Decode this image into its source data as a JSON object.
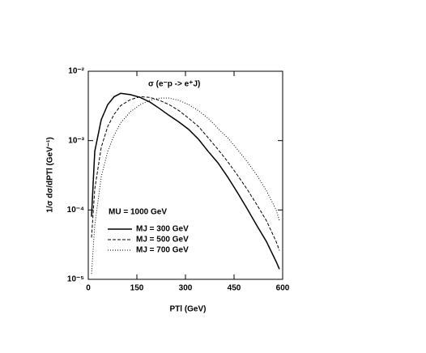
{
  "chart_data": {
    "type": "line",
    "annotations": [
      "σ (e⁻p -> e⁺J)",
      "MU = 1000 GeV"
    ],
    "xlabel": "PTl (GeV)",
    "ylabel": "1/σ dσ/dPTl (GeV⁻¹)",
    "x": [
      10,
      20,
      40,
      60,
      80,
      100,
      130,
      160,
      190,
      220,
      250,
      280,
      310,
      340,
      370,
      400,
      430,
      460,
      490,
      520,
      550,
      580,
      590
    ],
    "series": [
      {
        "name": "MJ = 300 GeV",
        "color": "#000000",
        "dash": "solid",
        "values": [
          8e-05,
          0.0007,
          0.002,
          0.0033,
          0.0043,
          0.0048,
          0.0046,
          0.0042,
          0.0036,
          0.0029,
          0.0023,
          0.00185,
          0.00145,
          0.00105,
          0.0007,
          0.00048,
          0.0003,
          0.00018,
          0.000105,
          6e-05,
          3.5e-05,
          1.8e-05,
          1.4e-05
        ]
      },
      {
        "name": "MJ = 500 GeV",
        "color": "#000000",
        "dash": "dashed",
        "values": [
          4e-05,
          0.0002,
          0.0008,
          0.0016,
          0.0024,
          0.0032,
          0.0039,
          0.0043,
          0.0042,
          0.0038,
          0.0033,
          0.0027,
          0.0021,
          0.0016,
          0.0011,
          0.00075,
          0.0005,
          0.00032,
          0.0002,
          0.00012,
          7e-05,
          3.5e-05,
          2.6e-05
        ]
      },
      {
        "name": "MJ = 700 GeV",
        "color": "#000000",
        "dash": "dotted",
        "values": [
          1.2e-05,
          6e-05,
          0.0003,
          0.0007,
          0.0012,
          0.0018,
          0.0026,
          0.0033,
          0.0038,
          0.0041,
          0.0041,
          0.0038,
          0.0033,
          0.0027,
          0.0021,
          0.0015,
          0.0011,
          0.00075,
          0.0005,
          0.00032,
          0.00019,
          0.0001,
          7e-05
        ]
      }
    ],
    "xlim": [
      0,
      600
    ],
    "xticks": [
      0,
      150,
      300,
      450,
      600
    ],
    "ylim": [
      1e-05,
      0.01
    ],
    "yticks": [
      {
        "value": 1e-05,
        "label": "10⁻⁵"
      },
      {
        "value": 0.0001,
        "label": "10⁻⁴"
      },
      {
        "value": 0.001,
        "label": "10⁻³"
      },
      {
        "value": 0.01,
        "label": "10⁻²"
      }
    ],
    "log_y": true,
    "legend": "lower-left"
  }
}
